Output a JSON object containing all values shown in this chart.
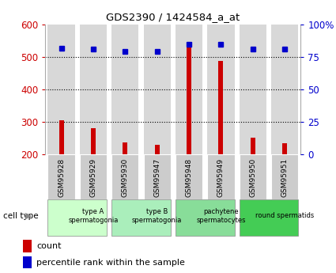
{
  "title": "GDS2390 / 1424584_a_at",
  "samples": [
    "GSM95928",
    "GSM95929",
    "GSM95930",
    "GSM95947",
    "GSM95948",
    "GSM95949",
    "GSM95950",
    "GSM95951"
  ],
  "counts": [
    305,
    280,
    237,
    228,
    537,
    488,
    250,
    234
  ],
  "percentiles": [
    82,
    81,
    79,
    79,
    85,
    85,
    81,
    81
  ],
  "ylim_left": [
    200,
    600
  ],
  "ylim_right": [
    0,
    100
  ],
  "yticks_left": [
    200,
    300,
    400,
    500,
    600
  ],
  "yticks_right": [
    0,
    25,
    50,
    75,
    100
  ],
  "bar_color": "#cc0000",
  "dot_color": "#0000cc",
  "cell_types": [
    {
      "label": "type A\nspermatogonia",
      "start": 0,
      "end": 2,
      "color": "#ccffcc"
    },
    {
      "label": "type B\nspermatogonia",
      "start": 2,
      "end": 4,
      "color": "#aaeebb"
    },
    {
      "label": "pachytene\nspermatocytes",
      "start": 4,
      "end": 6,
      "color": "#88dd99"
    },
    {
      "label": "round spermatids",
      "start": 6,
      "end": 8,
      "color": "#44cc55"
    }
  ],
  "bar_bg_color": "#d8d8d8",
  "sample_box_color": "#cccccc",
  "grid_color": "#000000",
  "dotted_yticks": [
    300,
    400,
    500
  ],
  "bar_width": 0.15,
  "dot_size": 5
}
